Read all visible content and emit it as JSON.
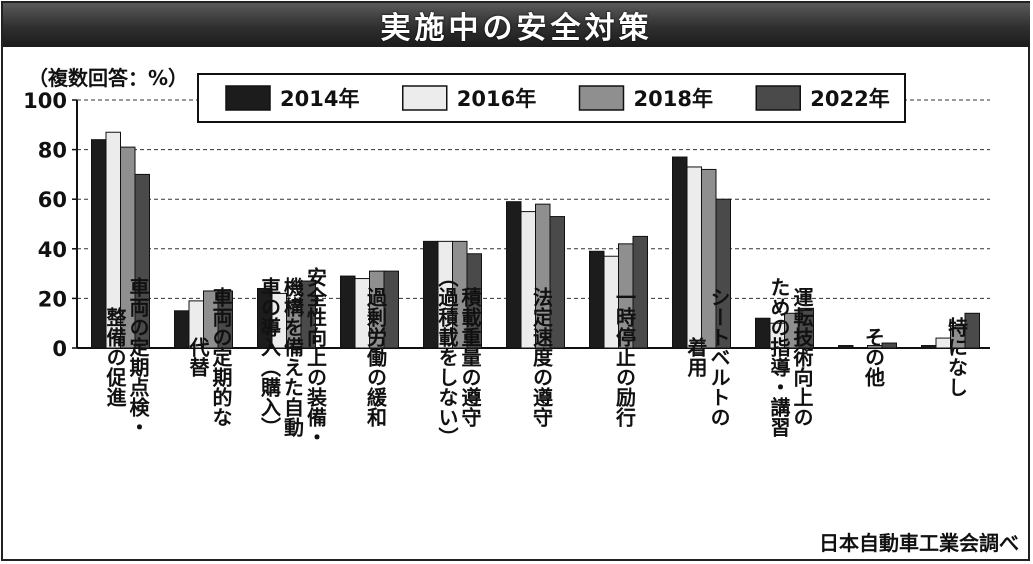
{
  "title": "実施中の安全対策",
  "unit_note": "（複数回答：%）",
  "source": "日本自動車工業会調べ",
  "colors": {
    "2014年": "#1c1c1c",
    "2016年": "#ececec",
    "2018年": "#8f8f8f",
    "2022年": "#4a4a4a"
  },
  "chart_data": {
    "type": "bar",
    "ylim": [
      0,
      100
    ],
    "yticks": [
      0,
      20,
      40,
      60,
      80,
      100
    ],
    "grid": "dashed horizontal",
    "legend_position": "top",
    "categories": [
      [
        "車両の定期点検・",
        "整備の促進"
      ],
      [
        "車両の定期的な",
        "代替"
      ],
      [
        "安全性向上の装備・",
        "機構を備えた自動",
        "車の導入（購入）"
      ],
      [
        "過剰労働の緩和"
      ],
      [
        "積載重量の遵守",
        "（過積載をしない）"
      ],
      [
        "法定速度の遵守"
      ],
      [
        "一時停止の励行"
      ],
      [
        "シートベルトの",
        "着用"
      ],
      [
        "運転技術向上の",
        "ための指導・講習"
      ],
      [
        "その他"
      ],
      [
        "特になし"
      ]
    ],
    "series": [
      {
        "name": "2014年",
        "values": [
          84,
          15,
          24,
          29,
          43,
          59,
          39,
          77,
          12,
          1,
          1
        ]
      },
      {
        "name": "2016年",
        "values": [
          87,
          19,
          22,
          28,
          43,
          55,
          37,
          73,
          10,
          0,
          4
        ]
      },
      {
        "name": "2018年",
        "values": [
          81,
          23,
          19,
          31,
          43,
          58,
          42,
          72,
          14,
          1,
          9
        ]
      },
      {
        "name": "2022年",
        "values": [
          70,
          23,
          27,
          31,
          38,
          53,
          45,
          60,
          16,
          2,
          14
        ]
      }
    ]
  }
}
